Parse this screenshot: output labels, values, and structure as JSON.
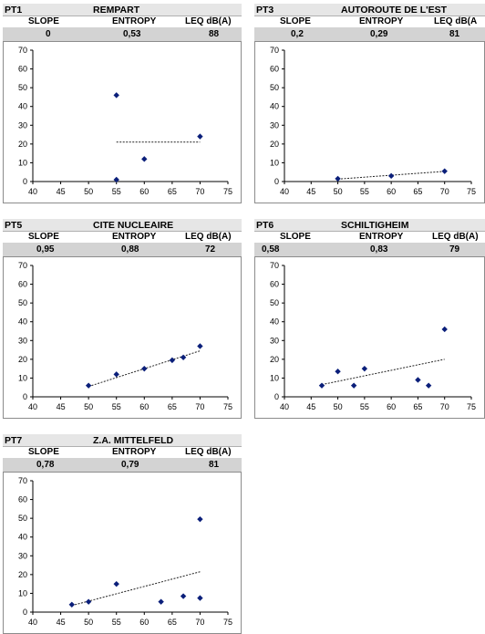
{
  "colors": {
    "marker": "#0b1f7a",
    "header_bg": "#e6e6e6",
    "values_bg": "#d3d3d3",
    "trend": "#222222"
  },
  "chart_data": [
    {
      "type": "scatter",
      "panel_id": "PT1",
      "title": "REMPART",
      "headers": {
        "slope": "SLOPE",
        "entropy": "ENTROPY",
        "leq": "LEQ dB(A)"
      },
      "values": {
        "slope": "0",
        "entropy": "0,53",
        "leq": "88"
      },
      "xlim": [
        40,
        75
      ],
      "ylim": [
        0,
        70
      ],
      "xticks": [
        "40",
        "45",
        "50",
        "55",
        "60",
        "65",
        "70",
        "75"
      ],
      "yticks": [
        "0",
        "10",
        "20",
        "30",
        "40",
        "50",
        "60",
        "70"
      ],
      "points": [
        {
          "x": 55,
          "y": 46
        },
        {
          "x": 55,
          "y": 1
        },
        {
          "x": 60,
          "y": 12
        },
        {
          "x": 70,
          "y": 24
        }
      ],
      "trendline": {
        "x1": 55,
        "y1": 21,
        "x2": 70,
        "y2": 21
      }
    },
    {
      "type": "scatter",
      "panel_id": "PT3",
      "title": "AUTOROUTE DE L'EST",
      "headers": {
        "slope": "SLOPE",
        "entropy": "ENTROPY",
        "leq": "LEQ dB(A"
      },
      "values": {
        "slope": "0,2",
        "entropy": "0,29",
        "leq": "81"
      },
      "xlim": [
        40,
        75
      ],
      "ylim": [
        0,
        70
      ],
      "xticks": [
        "40",
        "45",
        "50",
        "55",
        "60",
        "65",
        "70",
        "75"
      ],
      "yticks": [
        "0",
        "10",
        "20",
        "30",
        "40",
        "50",
        "60",
        "70"
      ],
      "points": [
        {
          "x": 50,
          "y": 1.5
        },
        {
          "x": 60,
          "y": 3
        },
        {
          "x": 70,
          "y": 5.5
        }
      ],
      "trendline": {
        "x1": 50,
        "y1": 1.3,
        "x2": 70,
        "y2": 5.4
      }
    },
    {
      "type": "scatter",
      "panel_id": "PT5",
      "title": "CITE NUCLEAIRE",
      "headers": {
        "slope": "SLOPE",
        "entropy": "ENTROPY",
        "leq": "LEQ dB(A)"
      },
      "values": {
        "slope": "0,95",
        "entropy": "0,88",
        "leq": "72"
      },
      "xlim": [
        40,
        75
      ],
      "ylim": [
        0,
        70
      ],
      "xticks": [
        "40",
        "45",
        "50",
        "55",
        "60",
        "65",
        "70",
        "75"
      ],
      "yticks": [
        "0",
        "10",
        "20",
        "30",
        "40",
        "50",
        "60",
        "70"
      ],
      "points": [
        {
          "x": 50,
          "y": 6
        },
        {
          "x": 55,
          "y": 12
        },
        {
          "x": 60,
          "y": 15
        },
        {
          "x": 65,
          "y": 19.5
        },
        {
          "x": 67,
          "y": 21
        },
        {
          "x": 70,
          "y": 27
        }
      ],
      "trendline": {
        "x1": 50,
        "y1": 5.5,
        "x2": 70,
        "y2": 24.5
      }
    },
    {
      "type": "scatter",
      "panel_id": "PT6",
      "title": "SCHILTIGHEIM",
      "headers": {
        "slope": "SLOPE",
        "entropy": "ENTROPY",
        "leq": "LEQ dB(A)"
      },
      "values": {
        "slope": "0,58",
        "entropy": "0,83",
        "leq": "79"
      },
      "xlim": [
        40,
        75
      ],
      "ylim": [
        0,
        70
      ],
      "xticks": [
        "40",
        "45",
        "50",
        "55",
        "60",
        "65",
        "70",
        "75"
      ],
      "yticks": [
        "0",
        "10",
        "20",
        "30",
        "40",
        "50",
        "60",
        "70"
      ],
      "points": [
        {
          "x": 47,
          "y": 6
        },
        {
          "x": 50,
          "y": 13.5
        },
        {
          "x": 53,
          "y": 6
        },
        {
          "x": 55,
          "y": 15
        },
        {
          "x": 65,
          "y": 9
        },
        {
          "x": 67,
          "y": 6
        },
        {
          "x": 70,
          "y": 36
        }
      ],
      "trendline": {
        "x1": 47,
        "y1": 6.5,
        "x2": 70,
        "y2": 20
      }
    },
    {
      "type": "scatter",
      "panel_id": "PT7",
      "title": "Z.A. MITTELFELD",
      "headers": {
        "slope": "SLOPE",
        "entropy": "ENTROPY",
        "leq": "LEQ dB(A)"
      },
      "values": {
        "slope": "0,78",
        "entropy": "0,79",
        "leq": "81"
      },
      "xlim": [
        40,
        75
      ],
      "ylim": [
        0,
        70
      ],
      "xticks": [
        "40",
        "45",
        "50",
        "55",
        "60",
        "65",
        "70",
        "75"
      ],
      "yticks": [
        "0",
        "10",
        "20",
        "30",
        "40",
        "50",
        "60",
        "70"
      ],
      "points": [
        {
          "x": 47,
          "y": 4
        },
        {
          "x": 50,
          "y": 5.5
        },
        {
          "x": 55,
          "y": 15
        },
        {
          "x": 63,
          "y": 5.5
        },
        {
          "x": 67,
          "y": 8.5
        },
        {
          "x": 70,
          "y": 7.5
        },
        {
          "x": 70,
          "y": 49.5
        }
      ],
      "trendline": {
        "x1": 47,
        "y1": 3.5,
        "x2": 70,
        "y2": 21.5
      }
    }
  ]
}
